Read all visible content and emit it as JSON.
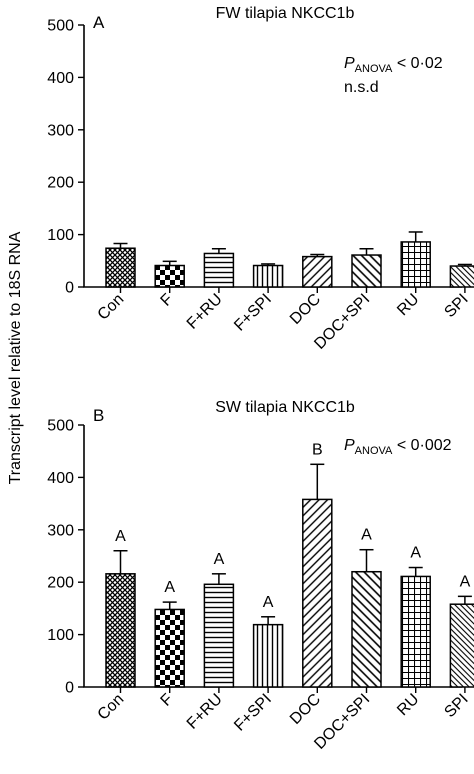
{
  "figure": {
    "ylabel": "Transcript level relative to 18S RNA"
  },
  "colors": {
    "axis": "#000000",
    "bar_fill": "#ffffff",
    "pattern_ink": "#000000"
  },
  "chart_data": [
    {
      "type": "bar",
      "panel_label": "A",
      "title": "FW tilapia NKCC1b",
      "stat": {
        "P": "P",
        "sub": "ANOVA",
        "value": " < 0·02"
      },
      "note": "n.s.d",
      "ylim": [
        0,
        500
      ],
      "yticks": [
        "0",
        "100",
        "200",
        "300",
        "400",
        "500"
      ],
      "categories": [
        "Con",
        "F",
        "F+RU",
        "F+SPI",
        "DOC",
        "DOC+SPI",
        "RU",
        "SPI"
      ],
      "values": [
        74,
        41,
        64,
        41,
        58,
        61,
        86,
        40
      ],
      "errors": [
        9,
        8,
        9,
        3,
        4,
        12,
        19,
        3
      ],
      "letters": [],
      "patterns": [
        "cross",
        "checker",
        "hlines",
        "vlines",
        "diag",
        "diag-rev",
        "grid",
        "diag-dense"
      ]
    },
    {
      "type": "bar",
      "panel_label": "B",
      "title": "SW tilapia NKCC1b",
      "stat": {
        "P": "P",
        "sub": "ANOVA",
        "value": " < 0·002"
      },
      "note": "",
      "ylim": [
        0,
        500
      ],
      "yticks": [
        "0",
        "100",
        "200",
        "300",
        "400",
        "500"
      ],
      "categories": [
        "Con",
        "F",
        "F+RU",
        "F+SPI",
        "DOC",
        "DOC+SPI",
        "RU",
        "SPI"
      ],
      "values": [
        216,
        148,
        196,
        119,
        358,
        220,
        211,
        158
      ],
      "errors": [
        44,
        14,
        20,
        15,
        67,
        42,
        17,
        15
      ],
      "letters": [
        "A",
        "A",
        "A",
        "A",
        "B",
        "A",
        "A",
        "A"
      ],
      "patterns": [
        "cross",
        "checker",
        "hlines",
        "vlines",
        "diag",
        "diag-rev",
        "grid",
        "diag-dense"
      ]
    }
  ]
}
